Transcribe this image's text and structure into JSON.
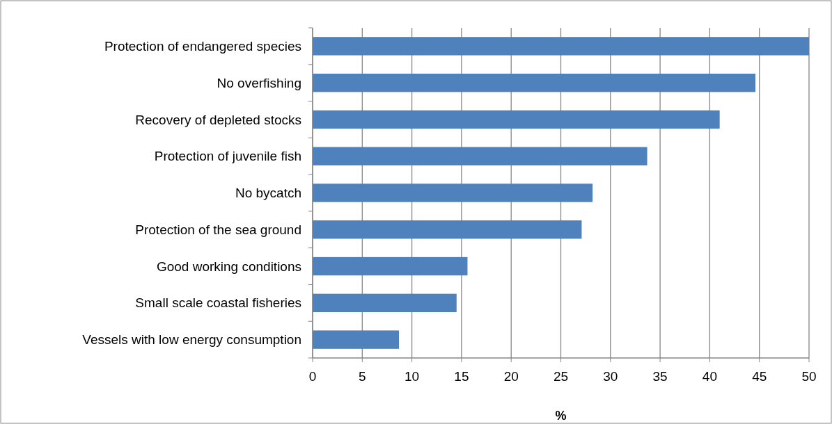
{
  "chart_data": {
    "type": "bar",
    "orientation": "horizontal",
    "xlabel": "%",
    "categories": [
      "Protection of endangered species",
      "No overfishing",
      "Recovery of depleted stocks",
      "Protection of juvenile fish",
      "No bycatch",
      "Protection of the sea ground",
      "Good working conditions",
      "Small scale coastal fisheries",
      "Vessels with low energy consumption"
    ],
    "values": [
      50,
      44.6,
      41.0,
      33.7,
      28.2,
      27.1,
      15.6,
      14.5,
      8.7
    ],
    "color": "#4f81bd",
    "xlim": [
      0,
      50
    ],
    "xticks": [
      0,
      5,
      10,
      15,
      20,
      25,
      30,
      35,
      40,
      45,
      50
    ],
    "grid": "x"
  }
}
